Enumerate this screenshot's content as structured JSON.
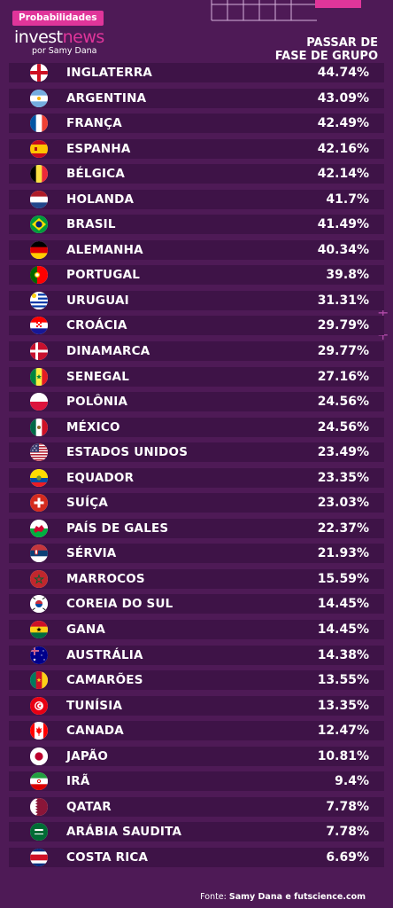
{
  "header": {
    "badge": "Probabilidades",
    "brand_part1": "invest",
    "brand_part2": "news",
    "byline": "por Samy Dana",
    "column_title_line1": "PASSAR DE",
    "column_title_line2": "FASE DE GRUPO"
  },
  "source": {
    "prefix": "Fonte:",
    "text": "Samy Dana e futscience.com"
  },
  "colors": {
    "background": "#4e1a56",
    "row": "#3e1347",
    "accent": "#e0359a",
    "text": "#ffffff"
  },
  "chart_data": {
    "type": "table",
    "columns": [
      "",
      "PASSAR DE FASE DE GRUPO"
    ],
    "rows": [
      {
        "country": "INGLATERRA",
        "value": "44.74%",
        "flag": "england-flag-icon"
      },
      {
        "country": "ARGENTINA",
        "value": "43.09%",
        "flag": "argentina-flag-icon"
      },
      {
        "country": "FRANÇA",
        "value": "42.49%",
        "flag": "france-flag-icon"
      },
      {
        "country": "ESPANHA",
        "value": "42.16%",
        "flag": "spain-flag-icon"
      },
      {
        "country": "BÉLGICA",
        "value": "42.14%",
        "flag": "belgium-flag-icon"
      },
      {
        "country": "HOLANDA",
        "value": "41.7%",
        "flag": "netherlands-flag-icon"
      },
      {
        "country": "BRASIL",
        "value": "41.49%",
        "flag": "brazil-flag-icon"
      },
      {
        "country": "ALEMANHA",
        "value": "40.34%",
        "flag": "germany-flag-icon"
      },
      {
        "country": "PORTUGAL",
        "value": "39.8%",
        "flag": "portugal-flag-icon"
      },
      {
        "country": "URUGUAI",
        "value": "31.31%",
        "flag": "uruguay-flag-icon"
      },
      {
        "country": "CROÁCIA",
        "value": "29.79%",
        "flag": "croatia-flag-icon"
      },
      {
        "country": "DINAMARCA",
        "value": "29.77%",
        "flag": "denmark-flag-icon"
      },
      {
        "country": "SENEGAL",
        "value": "27.16%",
        "flag": "senegal-flag-icon"
      },
      {
        "country": "POLÔNIA",
        "value": "24.56%",
        "flag": "poland-flag-icon"
      },
      {
        "country": "MÉXICO",
        "value": "24.56%",
        "flag": "mexico-flag-icon"
      },
      {
        "country": "ESTADOS UNIDOS",
        "value": "23.49%",
        "flag": "usa-flag-icon"
      },
      {
        "country": "EQUADOR",
        "value": "23.35%",
        "flag": "ecuador-flag-icon"
      },
      {
        "country": "SUÍÇA",
        "value": "23.03%",
        "flag": "switzerland-flag-icon"
      },
      {
        "country": "PAÍS DE GALES",
        "value": "22.37%",
        "flag": "wales-flag-icon"
      },
      {
        "country": "SÉRVIA",
        "value": "21.93%",
        "flag": "serbia-flag-icon"
      },
      {
        "country": "MARROCOS",
        "value": "15.59%",
        "flag": "morocco-flag-icon"
      },
      {
        "country": "COREIA DO SUL",
        "value": "14.45%",
        "flag": "south-korea-flag-icon"
      },
      {
        "country": "GANA",
        "value": "14.45%",
        "flag": "ghana-flag-icon"
      },
      {
        "country": "AUSTRÁLIA",
        "value": "14.38%",
        "flag": "australia-flag-icon"
      },
      {
        "country": "CAMARÕES",
        "value": "13.55%",
        "flag": "cameroon-flag-icon"
      },
      {
        "country": "TUNÍSIA",
        "value": "13.35%",
        "flag": "tunisia-flag-icon"
      },
      {
        "country": "CANADA",
        "value": "12.47%",
        "flag": "canada-flag-icon"
      },
      {
        "country": "JAPÃO",
        "value": "10.81%",
        "flag": "japan-flag-icon"
      },
      {
        "country": "IRÃ",
        "value": "9.4%",
        "flag": "iran-flag-icon"
      },
      {
        "country": "QATAR",
        "value": "7.78%",
        "flag": "qatar-flag-icon"
      },
      {
        "country": "ARÁBIA SAUDITA",
        "value": "7.78%",
        "flag": "saudi-arabia-flag-icon"
      },
      {
        "country": "COSTA RICA",
        "value": "6.69%",
        "flag": "costa-rica-flag-icon"
      }
    ]
  }
}
